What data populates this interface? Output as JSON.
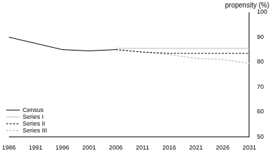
{
  "chart_data": {
    "type": "line",
    "ylabel": "propensity (%)",
    "x": [
      1986,
      1991,
      1996,
      2001,
      2006,
      2011,
      2016,
      2021,
      2026,
      2031
    ],
    "series": [
      {
        "name": "Census",
        "color": "#000000",
        "line_style": "solid",
        "values": [
          90,
          87.5,
          85,
          84.5,
          85,
          null,
          null,
          null,
          null,
          null
        ]
      },
      {
        "name": "Series I",
        "color": "#bbbbbb",
        "line_style": "solid",
        "values": [
          null,
          null,
          null,
          null,
          85.5,
          85.5,
          85.5,
          85.5,
          85.5,
          85.5
        ]
      },
      {
        "name": "Series II",
        "color": "#000000",
        "line_style": "dashed",
        "values": [
          null,
          null,
          null,
          null,
          85,
          84,
          83.5,
          83.5,
          83.5,
          83.5
        ]
      },
      {
        "name": "Series III",
        "color": "#aaaaaa",
        "line_style": "dashed",
        "values": [
          null,
          null,
          null,
          null,
          85,
          84,
          83,
          81.5,
          81,
          79.5
        ]
      }
    ],
    "xlim": [
      1986,
      2031
    ],
    "xticks": [
      1986,
      1991,
      1996,
      2001,
      2006,
      2011,
      2016,
      2021,
      2026,
      2031
    ],
    "ylim": [
      50,
      100
    ],
    "yticks": [
      50,
      60,
      70,
      80,
      90,
      100
    ],
    "grid": false,
    "legend": "bottom left"
  }
}
